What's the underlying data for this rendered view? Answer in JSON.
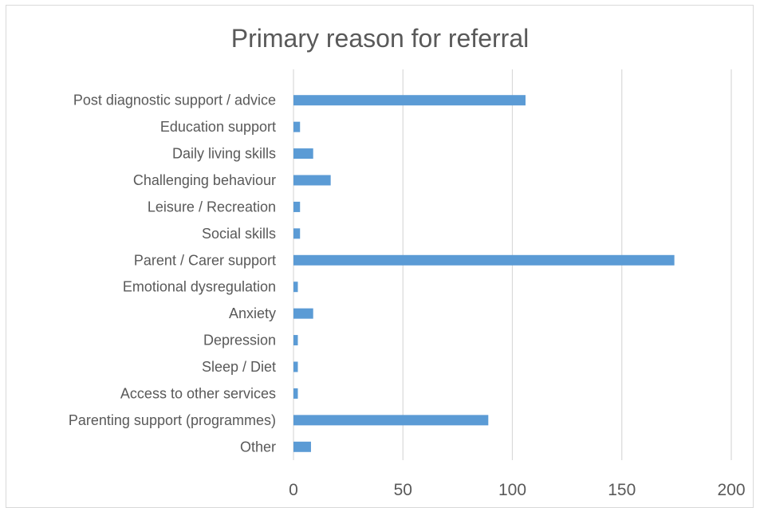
{
  "chart_data": {
    "type": "bar",
    "orientation": "horizontal",
    "title": "Primary reason for referral",
    "xlabel": "",
    "ylabel": "",
    "categories": [
      "Post diagnostic support / advice",
      "Education support",
      "Daily living skills",
      "Challenging behaviour",
      "Leisure / Recreation",
      "Social skills",
      "Parent / Carer support",
      "Emotional dysregulation",
      "Anxiety",
      "Depression",
      "Sleep / Diet",
      "Access to other services",
      "Parenting support (programmes)",
      "Other"
    ],
    "values": [
      106,
      3,
      9,
      17,
      3,
      3,
      174,
      2,
      9,
      2,
      2,
      2,
      89,
      8
    ],
    "xlim": [
      0,
      200
    ],
    "xticks": [
      0,
      50,
      100,
      150,
      200
    ],
    "grid": true,
    "legend": "none",
    "bar_color": "#5b9bd5",
    "grid_color": "#d9d9d9"
  }
}
